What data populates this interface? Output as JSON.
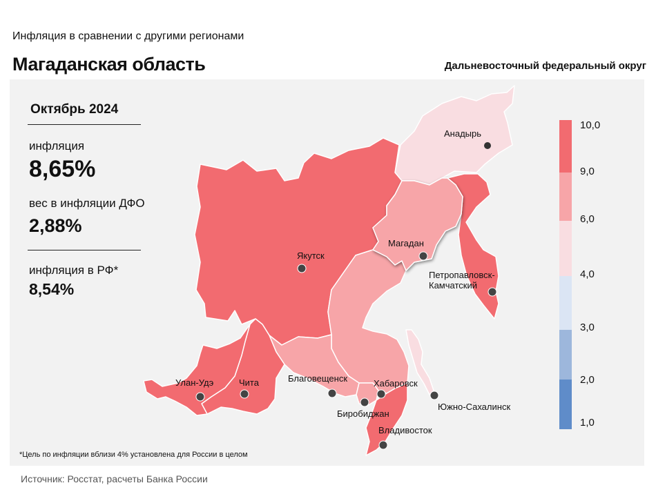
{
  "header": {
    "subtitle": "Инфляция  в сравнении  с другими  регионами",
    "title": "Магаданская область",
    "district": "Дальневосточный федеральный округ"
  },
  "stats": {
    "period": "Октябрь 2024",
    "inflation_label": "инфляция",
    "inflation_value": "8,65%",
    "weight_label": "вес в инфляции  ДФО",
    "weight_value": "2,88%",
    "russia_label": "инфляция  в РФ*",
    "russia_value": "8,54%"
  },
  "map": {
    "regions": [
      {
        "name": "Якутия",
        "fill": "#f26b70"
      },
      {
        "name": "Чукотка",
        "fill": "#f9dde1"
      },
      {
        "name": "Магаданская область",
        "fill": "#f7a5a8"
      },
      {
        "name": "Камчатка",
        "fill": "#f26b70"
      },
      {
        "name": "Хабаровский край",
        "fill": "#f7a5a8"
      },
      {
        "name": "Бурятия",
        "fill": "#f26b70"
      },
      {
        "name": "Забайкальский край",
        "fill": "#f26b70"
      },
      {
        "name": "Амурская область",
        "fill": "#f7a5a8"
      },
      {
        "name": "ЕАО",
        "fill": "#f7a5a8"
      },
      {
        "name": "Приморский край",
        "fill": "#f26b70"
      },
      {
        "name": "Сахалин",
        "fill": "#f9dde1"
      }
    ],
    "cities": [
      {
        "name": "Анадырь"
      },
      {
        "name": "Якутск"
      },
      {
        "name": "Магадан"
      },
      {
        "name": "Петропавловск-"
      },
      {
        "name": "Камчатский"
      },
      {
        "name": "Улан-Удэ"
      },
      {
        "name": "Чита"
      },
      {
        "name": "Благовещенск"
      },
      {
        "name": "Хабаровск"
      },
      {
        "name": "Биробиджан"
      },
      {
        "name": "Южно-Сахалинск"
      },
      {
        "name": "Владивосток"
      }
    ]
  },
  "legend": {
    "ticks": [
      "10,0",
      "9,0",
      "6,0",
      "4,0",
      "3,0",
      "2,0",
      "1,0"
    ],
    "colors": [
      "#f26b70",
      "#f7a5a8",
      "#f9dde1",
      "#dbe5f4",
      "#9db7dc",
      "#5f8cc9"
    ]
  },
  "footer": {
    "footnote": "*Цель по инфляции вблизи 4% установлена для России в целом",
    "source": "Источник: Росстат, расчеты Банка России"
  }
}
